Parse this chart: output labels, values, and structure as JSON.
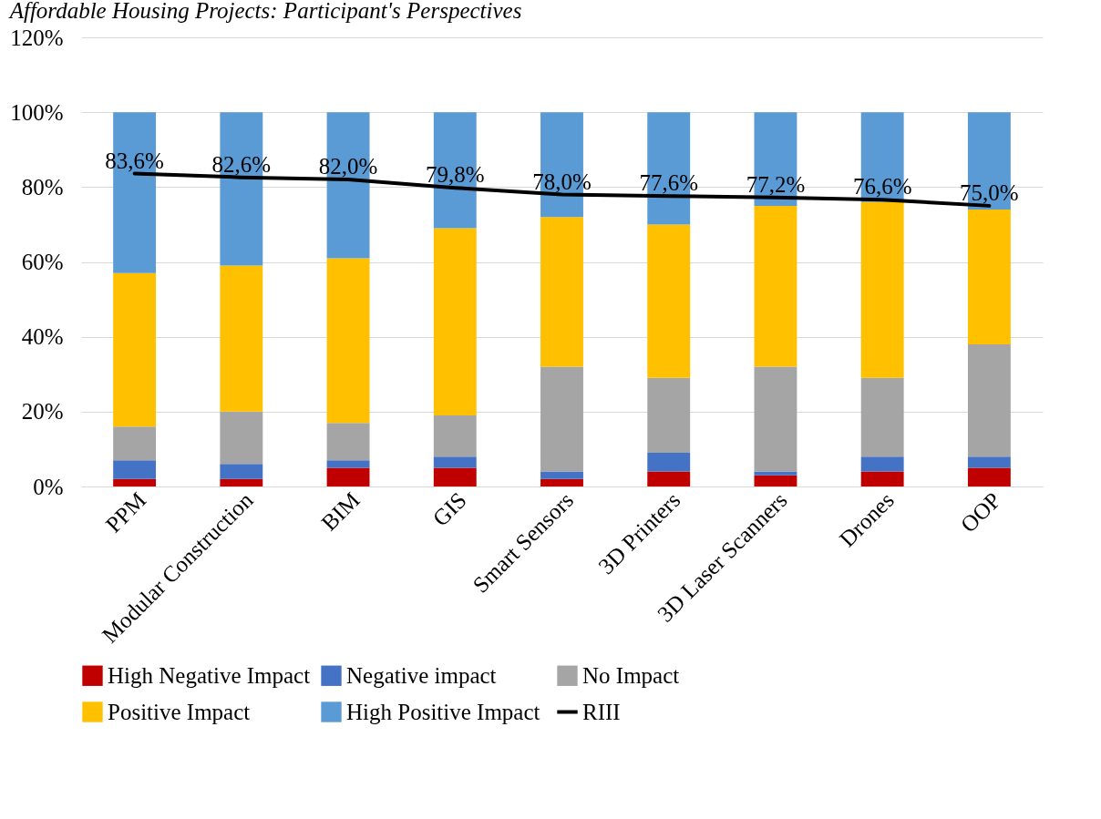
{
  "chart_data": {
    "type": "bar",
    "title": "Affordable Housing Projects: Participant's Perspectives",
    "stacked": true,
    "legend": "bottom",
    "grid": "y",
    "categories": [
      "PPM",
      "Modular Construction",
      "BIM",
      "GIS",
      "Smart Sensors",
      "3D Printers",
      "3D Laser Scanners",
      "Drones",
      "OOP"
    ],
    "ylim": [
      0,
      120
    ],
    "yticks": [
      {
        "value": 0,
        "label": "0%"
      },
      {
        "value": 20,
        "label": "20%"
      },
      {
        "value": 40,
        "label": "40%"
      },
      {
        "value": 60,
        "label": "60%"
      },
      {
        "value": 80,
        "label": "80%"
      },
      {
        "value": 100,
        "label": "100%"
      },
      {
        "value": 120,
        "label": "120%"
      }
    ],
    "series": [
      {
        "name": "High Negative Impact",
        "color": "#c00000",
        "values": [
          2,
          2,
          5,
          5,
          2,
          4,
          3,
          4,
          5
        ]
      },
      {
        "name": "Negative impact",
        "color": "#4472c4",
        "values": [
          5,
          4,
          2,
          3,
          2,
          5,
          1,
          4,
          3
        ]
      },
      {
        "name": "No Impact",
        "color": "#a5a5a5",
        "values": [
          9,
          14,
          10,
          11,
          28,
          20,
          28,
          21,
          30
        ]
      },
      {
        "name": "Positive Impact",
        "color": "#ffc000",
        "values": [
          41,
          39,
          44,
          50,
          40,
          41,
          43,
          47,
          36
        ]
      },
      {
        "name": "High Positive Impact",
        "color": "#5b9bd5",
        "values": [
          43,
          41,
          39,
          31,
          28,
          30,
          25,
          24,
          26
        ]
      },
      {
        "name": "RIII",
        "type": "line",
        "color": "#000000",
        "values": [
          83.6,
          82.6,
          82.0,
          79.8,
          78.0,
          77.6,
          77.2,
          76.6,
          75.0
        ],
        "value_labels": [
          "83,6%",
          "82,6%",
          "82,0%",
          "79,8%",
          "78,0%",
          "77,6%",
          "77,2%",
          "76,6%",
          "75,0%"
        ]
      }
    ]
  }
}
